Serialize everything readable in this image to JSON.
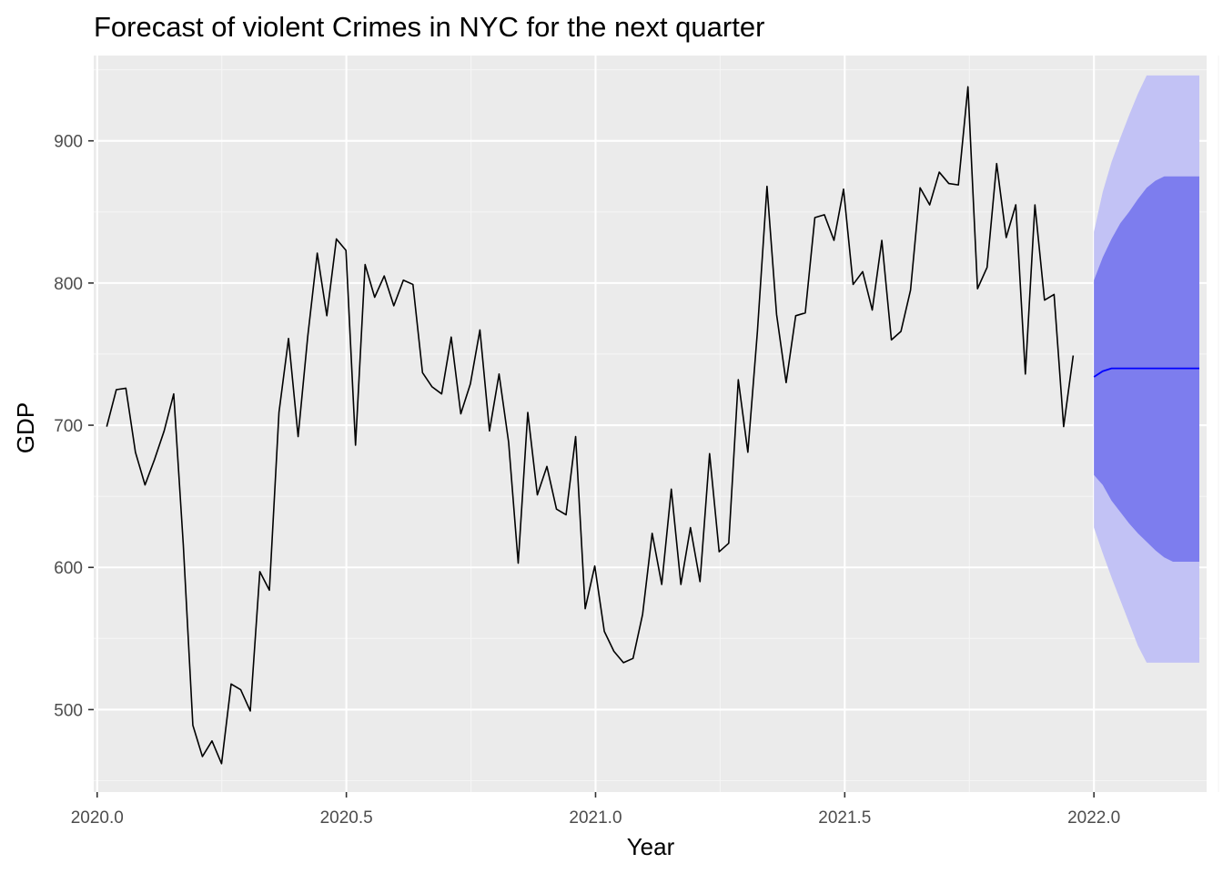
{
  "chart_data": {
    "type": "line",
    "title": "Forecast of violent Crimes in NYC for the next quarter",
    "xlabel": "Year",
    "ylabel": "GDP",
    "xlim": [
      1.9931,
      2.2261
    ],
    "ylim": [
      442.0,
      960.0
    ],
    "x_ticks": [
      {
        "value": 0,
        "label": "2020.0"
      },
      {
        "value": 0.5,
        "label": "2020.5"
      },
      {
        "value": 1.0,
        "label": "2021.0"
      },
      {
        "value": 1.5,
        "label": "2021.5"
      },
      {
        "value": 2.0,
        "label": "2022.0"
      }
    ],
    "y_ticks": [
      {
        "value": 500,
        "label": "500"
      },
      {
        "value": 600,
        "label": "600"
      },
      {
        "value": 700,
        "label": "700"
      },
      {
        "value": 800,
        "label": "800"
      },
      {
        "value": 900,
        "label": "900"
      }
    ],
    "x_axis_origin": 2020.0,
    "x_axis_step": 0.0192,
    "grid": true,
    "legend": "none",
    "colors": {
      "panel": "#ebebeb",
      "grid_major": "#ffffff",
      "grid_minor": "#f5f5f5",
      "observed": "#000000",
      "forecast": "#0000ff",
      "band80": "#7d7dee",
      "band95": "#c2c2f5"
    },
    "observed": {
      "x_start": 2020.0192,
      "values": [
        699,
        725,
        726,
        681,
        658,
        676,
        696,
        722,
        616,
        489,
        467,
        478,
        462,
        518,
        514,
        499,
        597,
        584,
        709,
        761,
        692,
        762,
        821,
        777,
        831,
        823,
        686,
        813,
        790,
        805,
        784,
        802,
        799,
        737,
        727,
        722,
        762,
        708,
        729,
        767,
        696,
        736,
        688,
        603,
        709,
        651,
        671,
        641,
        637,
        692,
        571,
        601,
        555,
        541,
        533,
        536,
        567,
        624,
        588,
        655,
        588,
        628,
        590,
        680,
        611,
        617,
        732,
        681,
        766,
        868,
        778,
        730,
        777,
        779,
        846,
        848,
        830,
        866,
        799,
        808,
        781,
        830,
        760,
        766,
        795,
        867,
        855,
        878,
        870,
        869,
        938,
        796,
        811,
        884,
        832,
        855,
        736,
        855,
        788,
        792,
        699,
        749
      ]
    },
    "forecast": {
      "x_start": 2022.0,
      "mean": [
        734,
        738,
        740,
        740,
        740,
        740,
        740,
        740,
        740,
        740,
        740,
        740,
        740
      ],
      "lo80": [
        665,
        658,
        647,
        639,
        631,
        624,
        618,
        612,
        607,
        604,
        604,
        604,
        604
      ],
      "hi80": [
        802,
        818,
        831,
        842,
        850,
        859,
        867,
        872,
        875,
        875,
        875,
        875,
        875
      ],
      "lo95": [
        628,
        610,
        593,
        577,
        561,
        545,
        533,
        533,
        533,
        533,
        533,
        533,
        533
      ],
      "hi95": [
        836,
        864,
        885,
        902,
        918,
        933,
        946,
        946,
        946,
        946,
        946,
        946,
        946
      ],
      "x_end": 2022.2115
    }
  }
}
